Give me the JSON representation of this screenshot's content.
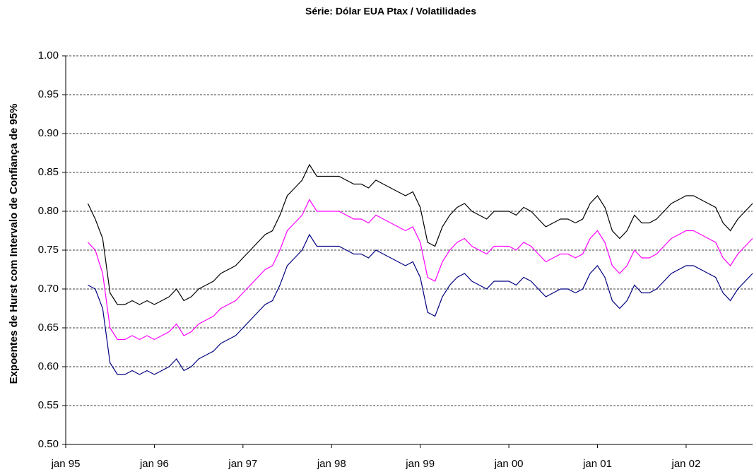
{
  "chart_data": {
    "type": "line",
    "title": "Série: Dólar EUA Ptax / Volatilidades",
    "y_label": "Expoentes de Hurst com Intervalo de Confiança de 95%",
    "xlim": [
      "1995-01",
      "2002-10"
    ],
    "xticks": [
      {
        "value": "1995-01",
        "label": "jan 95"
      },
      {
        "value": "1996-01",
        "label": "jan 96"
      },
      {
        "value": "1997-01",
        "label": "jan 97"
      },
      {
        "value": "1998-01",
        "label": "jan 98"
      },
      {
        "value": "1999-01",
        "label": "jan 99"
      },
      {
        "value": "2000-01",
        "label": "jan 00"
      },
      {
        "value": "2001-01",
        "label": "jan 01"
      },
      {
        "value": "2002-01",
        "label": "jan 02"
      }
    ],
    "ylim": [
      0.5,
      1
    ],
    "yticks": [
      {
        "value": 0.5,
        "label": "0.50"
      },
      {
        "value": 0.55,
        "label": "0.55"
      },
      {
        "value": 0.6,
        "label": "0.60"
      },
      {
        "value": 0.65,
        "label": "0.65"
      },
      {
        "value": 0.7,
        "label": "0.70"
      },
      {
        "value": 0.75,
        "label": "0.75"
      },
      {
        "value": 0.8,
        "label": "0.80"
      },
      {
        "value": 0.85,
        "label": "0.85"
      },
      {
        "value": 0.9,
        "label": "0.90"
      },
      {
        "value": 0.95,
        "label": "0.95"
      },
      {
        "value": 1,
        "label": "1.00"
      }
    ],
    "grid": true,
    "x": [
      "1995-04",
      "1995-05",
      "1995-06",
      "1995-07",
      "1995-08",
      "1995-09",
      "1995-10",
      "1995-11",
      "1995-12",
      "1996-01",
      "1996-02",
      "1996-03",
      "1996-04",
      "1996-05",
      "1996-06",
      "1996-07",
      "1996-08",
      "1996-09",
      "1996-10",
      "1996-11",
      "1996-12",
      "1997-01",
      "1997-02",
      "1997-03",
      "1997-04",
      "1997-05",
      "1997-06",
      "1997-07",
      "1997-08",
      "1997-09",
      "1997-10",
      "1997-11",
      "1997-12",
      "1998-01",
      "1998-02",
      "1998-03",
      "1998-04",
      "1998-05",
      "1998-06",
      "1998-07",
      "1998-08",
      "1998-09",
      "1998-10",
      "1998-11",
      "1998-12",
      "1999-01",
      "1999-02",
      "1999-03",
      "1999-04",
      "1999-05",
      "1999-06",
      "1999-07",
      "1999-08",
      "1999-09",
      "1999-10",
      "1999-11",
      "1999-12",
      "2000-01",
      "2000-02",
      "2000-03",
      "2000-04",
      "2000-05",
      "2000-06",
      "2000-07",
      "2000-08",
      "2000-09",
      "2000-10",
      "2000-11",
      "2000-12",
      "2001-01",
      "2001-02",
      "2001-03",
      "2001-04",
      "2001-05",
      "2001-06",
      "2001-07",
      "2001-08",
      "2001-09",
      "2001-10",
      "2001-11",
      "2001-12",
      "2002-01",
      "2002-02",
      "2002-03",
      "2002-04",
      "2002-05",
      "2002-06",
      "2002-07",
      "2002-08",
      "2002-09",
      "2002-10"
    ],
    "series": [
      {
        "color": "#000000",
        "values": [
          0.81,
          0.79,
          0.765,
          0.695,
          0.68,
          0.68,
          0.685,
          0.68,
          0.685,
          0.68,
          0.685,
          0.69,
          0.7,
          0.685,
          0.69,
          0.7,
          0.705,
          0.71,
          0.72,
          0.725,
          0.73,
          0.74,
          0.75,
          0.76,
          0.77,
          0.775,
          0.795,
          0.82,
          0.83,
          0.84,
          0.86,
          0.845,
          0.845,
          0.845,
          0.845,
          0.84,
          0.835,
          0.835,
          0.83,
          0.84,
          0.835,
          0.83,
          0.825,
          0.82,
          0.825,
          0.805,
          0.76,
          0.755,
          0.78,
          0.795,
          0.805,
          0.81,
          0.8,
          0.795,
          0.79,
          0.8,
          0.8,
          0.8,
          0.795,
          0.805,
          0.8,
          0.79,
          0.78,
          0.785,
          0.79,
          0.79,
          0.785,
          0.79,
          0.81,
          0.82,
          0.805,
          0.775,
          0.765,
          0.775,
          0.795,
          0.785,
          0.785,
          0.79,
          0.8,
          0.81,
          0.815,
          0.82,
          0.82,
          0.815,
          0.81,
          0.805,
          0.785,
          0.775,
          0.79,
          0.8,
          0.81
        ]
      },
      {
        "color": "#ff00ff",
        "values": [
          0.76,
          0.75,
          0.72,
          0.65,
          0.635,
          0.635,
          0.64,
          0.635,
          0.64,
          0.635,
          0.64,
          0.645,
          0.655,
          0.64,
          0.645,
          0.655,
          0.66,
          0.665,
          0.675,
          0.68,
          0.685,
          0.695,
          0.705,
          0.715,
          0.725,
          0.73,
          0.75,
          0.775,
          0.785,
          0.795,
          0.815,
          0.8,
          0.8,
          0.8,
          0.8,
          0.795,
          0.79,
          0.79,
          0.785,
          0.795,
          0.79,
          0.785,
          0.78,
          0.775,
          0.78,
          0.76,
          0.715,
          0.71,
          0.735,
          0.75,
          0.76,
          0.765,
          0.755,
          0.75,
          0.745,
          0.755,
          0.755,
          0.755,
          0.75,
          0.76,
          0.755,
          0.745,
          0.735,
          0.74,
          0.745,
          0.745,
          0.74,
          0.745,
          0.765,
          0.775,
          0.76,
          0.73,
          0.72,
          0.73,
          0.75,
          0.74,
          0.74,
          0.745,
          0.755,
          0.765,
          0.77,
          0.775,
          0.775,
          0.77,
          0.765,
          0.76,
          0.74,
          0.73,
          0.745,
          0.755,
          0.765
        ]
      },
      {
        "color": "#000080",
        "values": [
          0.705,
          0.7,
          0.675,
          0.605,
          0.59,
          0.59,
          0.595,
          0.59,
          0.595,
          0.59,
          0.595,
          0.6,
          0.61,
          0.595,
          0.6,
          0.61,
          0.615,
          0.62,
          0.63,
          0.635,
          0.64,
          0.65,
          0.66,
          0.67,
          0.68,
          0.685,
          0.705,
          0.73,
          0.74,
          0.75,
          0.77,
          0.755,
          0.755,
          0.755,
          0.755,
          0.75,
          0.745,
          0.745,
          0.74,
          0.75,
          0.745,
          0.74,
          0.735,
          0.73,
          0.735,
          0.715,
          0.67,
          0.665,
          0.69,
          0.705,
          0.715,
          0.72,
          0.71,
          0.705,
          0.7,
          0.71,
          0.71,
          0.71,
          0.705,
          0.715,
          0.71,
          0.7,
          0.69,
          0.695,
          0.7,
          0.7,
          0.695,
          0.7,
          0.72,
          0.73,
          0.715,
          0.685,
          0.675,
          0.685,
          0.705,
          0.695,
          0.695,
          0.7,
          0.71,
          0.72,
          0.725,
          0.73,
          0.73,
          0.725,
          0.72,
          0.715,
          0.695,
          0.685,
          0.7,
          0.71,
          0.72
        ]
      }
    ]
  }
}
